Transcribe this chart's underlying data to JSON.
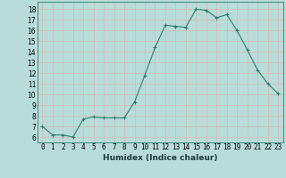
{
  "x": [
    0,
    1,
    2,
    3,
    4,
    5,
    6,
    7,
    8,
    9,
    10,
    11,
    12,
    13,
    14,
    15,
    16,
    17,
    18,
    19,
    20,
    21,
    22,
    23
  ],
  "y": [
    7.0,
    6.2,
    6.2,
    6.0,
    7.7,
    7.9,
    7.8,
    7.8,
    7.8,
    9.3,
    11.8,
    14.4,
    16.5,
    16.4,
    16.3,
    18.0,
    17.9,
    17.2,
    17.5,
    16.0,
    14.2,
    12.3,
    11.0,
    10.1
  ],
  "line_color": "#2e7d6e",
  "marker": "+",
  "marker_size": 3,
  "marker_lw": 0.8,
  "line_width": 0.8,
  "bg_color": "#b8ddd8",
  "grid_color": "#d4b8b8",
  "xlabel": "Humidex (Indice chaleur)",
  "ylabel_ticks": [
    6,
    7,
    8,
    9,
    10,
    11,
    12,
    13,
    14,
    15,
    16,
    17,
    18
  ],
  "ylim": [
    5.5,
    18.7
  ],
  "xlim": [
    -0.5,
    23.5
  ],
  "xlabel_fontsize": 6.5,
  "tick_fontsize": 5.5
}
